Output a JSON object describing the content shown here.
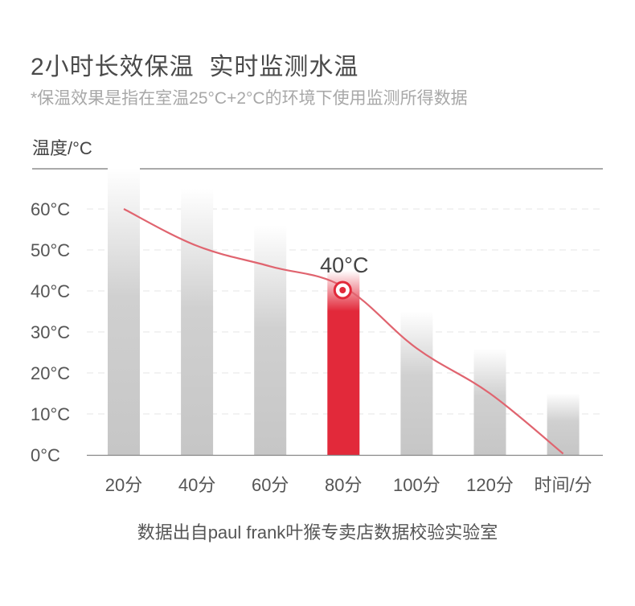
{
  "header": {
    "title": "2小时长效保温  实时监测水温",
    "subtitle": "*保温效果是指在室温25°C+2°C的环境下使用监测所得数据"
  },
  "footer": {
    "source": "数据出自paul frank叶猴专卖店数据校验实验室"
  },
  "chart_data": {
    "type": "bar",
    "ylabel": "温度/°C",
    "xlabel": "时间/分",
    "categories": [
      "20分",
      "40分",
      "60分",
      "80分",
      "100分",
      "120分",
      "时间/分"
    ],
    "values": [
      70,
      65,
      56,
      45,
      35,
      26,
      15
    ],
    "curve": {
      "x": [
        20,
        40,
        60,
        80,
        100,
        120,
        140
      ],
      "y": [
        60,
        51,
        46,
        41,
        26,
        15,
        0.3
      ]
    },
    "highlight": {
      "index": 3,
      "label": "40°C",
      "value": 40
    },
    "y_ticks": [
      "0°C",
      "10°C",
      "20°C",
      "30°C",
      "40°C",
      "50°C",
      "60°C"
    ],
    "ylim": [
      0,
      70
    ],
    "grid": true,
    "colors": {
      "bar": "#c8c8c8",
      "highlight": "#e2293a",
      "curve": "#e0646f"
    }
  }
}
